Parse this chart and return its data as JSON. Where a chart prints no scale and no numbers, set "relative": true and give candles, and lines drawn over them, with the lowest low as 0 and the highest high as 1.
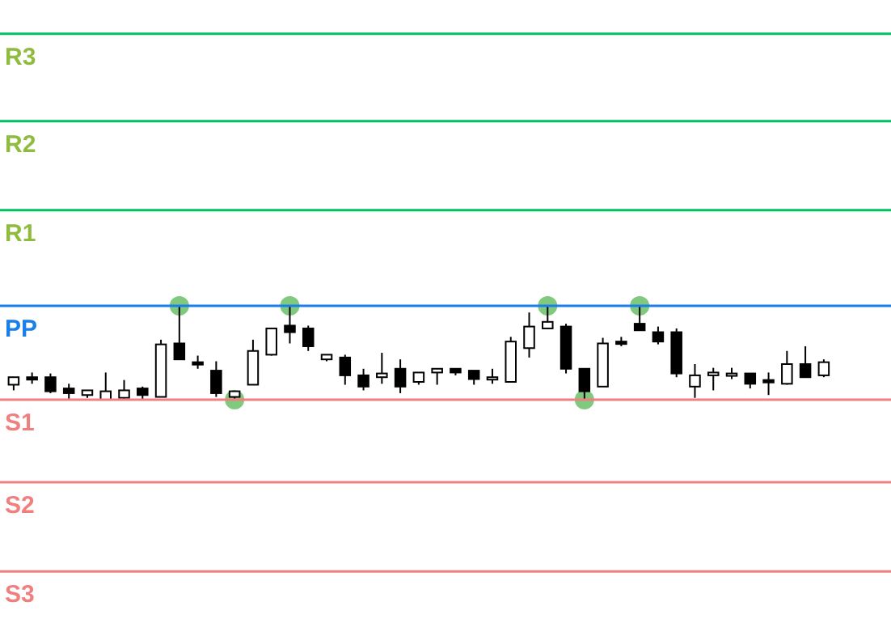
{
  "chart_data": {
    "type": "candlestick",
    "relative": true,
    "tick_labels": false,
    "grid": false,
    "legend": false,
    "categories": [
      null,
      null,
      null,
      null,
      null,
      null,
      null,
      null,
      null,
      null,
      null,
      null,
      null,
      null,
      null,
      null,
      null,
      null,
      null,
      null,
      null,
      null,
      null,
      null,
      null,
      null,
      null,
      null,
      null,
      null,
      null,
      null,
      null,
      null,
      null,
      null,
      null,
      null,
      null,
      null,
      null,
      null,
      null,
      null,
      null
    ],
    "series": [
      {
        "type": "candlestick",
        "color": "#000000",
        "ohlc": [
          [
            0.16,
            0.24,
            0.1,
            0.24
          ],
          [
            0.24,
            0.29,
            0.17,
            0.22
          ],
          [
            0.24,
            0.28,
            0.07,
            0.09
          ],
          [
            0.12,
            0.17,
            0,
            0.07
          ],
          [
            0.05,
            0.1,
            0.02,
            0.1
          ],
          [
            0,
            0.29,
            0,
            0.09
          ],
          [
            0.02,
            0.21,
            0,
            0.1
          ],
          [
            0.12,
            0.14,
            0,
            0.05
          ],
          [
            0.03,
            0.64,
            0.03,
            0.59
          ],
          [
            0.6,
            1,
            0.43,
            0.43
          ],
          [
            0.4,
            0.47,
            0.33,
            0.38
          ],
          [
            0.31,
            0.41,
            0.03,
            0.07
          ],
          [
            0.03,
            0.09,
            0,
            0.09
          ],
          [
            0.16,
            0.64,
            0.16,
            0.52
          ],
          [
            0.48,
            0.76,
            0.47,
            0.76
          ],
          [
            0.79,
            1,
            0.6,
            0.72
          ],
          [
            0.76,
            0.79,
            0.52,
            0.57
          ],
          [
            0.43,
            0.48,
            0.41,
            0.48
          ],
          [
            0.45,
            0.48,
            0.16,
            0.26
          ],
          [
            0.26,
            0.33,
            0.1,
            0.14
          ],
          [
            0.24,
            0.5,
            0.17,
            0.28
          ],
          [
            0.33,
            0.43,
            0.07,
            0.14
          ],
          [
            0.19,
            0.29,
            0.16,
            0.29
          ],
          [
            0.29,
            0.33,
            0.16,
            0.33
          ],
          [
            0.33,
            0.33,
            0.26,
            0.29
          ],
          [
            0.31,
            0.31,
            0.16,
            0.22
          ],
          [
            0.22,
            0.33,
            0.17,
            0.24
          ],
          [
            0.19,
            0.67,
            0.19,
            0.62
          ],
          [
            0.55,
            0.93,
            0.45,
            0.78
          ],
          [
            0.76,
            1,
            0.76,
            0.83
          ],
          [
            0.78,
            0.81,
            0.28,
            0.33
          ],
          [
            0.33,
            0.33,
            0,
            0.09
          ],
          [
            0.14,
            0.66,
            0.14,
            0.6
          ],
          [
            0.62,
            0.67,
            0.57,
            0.6
          ],
          [
            0.81,
            1,
            0.74,
            0.74
          ],
          [
            0.72,
            0.78,
            0.59,
            0.62
          ],
          [
            0.72,
            0.76,
            0.24,
            0.28
          ],
          [
            0.14,
            0.38,
            0.02,
            0.26
          ],
          [
            0.26,
            0.34,
            0.1,
            0.29
          ],
          [
            0.26,
            0.34,
            0.22,
            0.28
          ],
          [
            0.28,
            0.28,
            0.12,
            0.17
          ],
          [
            0.21,
            0.29,
            0.05,
            0.21
          ],
          [
            0.17,
            0.52,
            0.16,
            0.38
          ],
          [
            0.38,
            0.57,
            0.24,
            0.24
          ],
          [
            0.26,
            0.43,
            0.24,
            0.4
          ]
        ]
      },
      {
        "type": "scatter",
        "color": "#6abf69",
        "marker": "circle",
        "values": [
          null,
          null,
          null,
          null,
          null,
          null,
          null,
          null,
          null,
          1,
          null,
          null,
          0,
          null,
          null,
          1,
          null,
          null,
          null,
          null,
          null,
          null,
          null,
          null,
          null,
          null,
          null,
          null,
          null,
          1,
          null,
          0,
          null,
          null,
          1,
          null,
          null,
          null,
          null,
          null,
          null,
          null,
          null,
          null,
          null
        ]
      }
    ],
    "ref_lines": [
      {
        "axis": "y",
        "value": 3.9,
        "label": "R3",
        "color": "#00c060"
      },
      {
        "axis": "y",
        "value": 2.97,
        "label": "R2",
        "color": "#00c060"
      },
      {
        "axis": "y",
        "value": 2.02,
        "label": "R1",
        "color": "#00c060"
      },
      {
        "axis": "y",
        "value": 1,
        "label": "PP",
        "color": "#1a7fe8"
      },
      {
        "axis": "y",
        "value": 0,
        "label": "S1",
        "color": "#f08080"
      },
      {
        "axis": "y",
        "value": -0.88,
        "label": "S2",
        "color": "#f08080"
      },
      {
        "axis": "y",
        "value": -1.83,
        "label": "S3",
        "color": "#f08080"
      }
    ]
  }
}
